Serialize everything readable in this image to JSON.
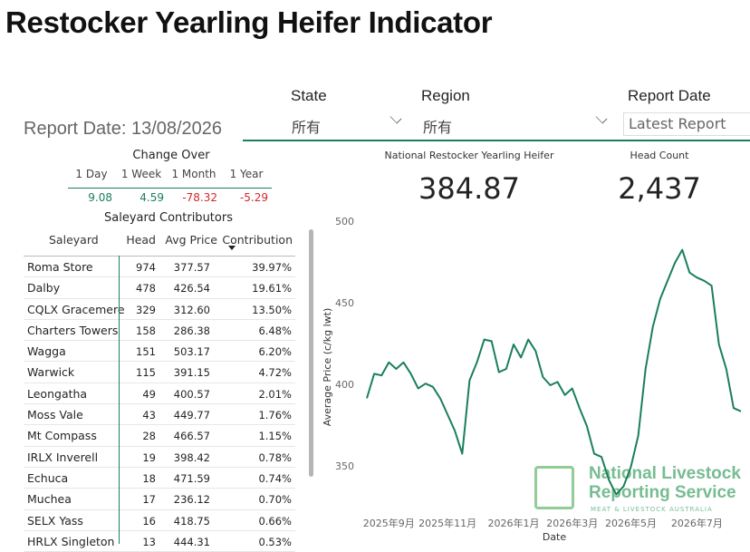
{
  "title": "Restocker Yearling Heifer Indicator",
  "report_date": "Report Date: 13/08/2026",
  "filters": [
    {
      "label": "State",
      "value": "所有"
    },
    {
      "label": "Region",
      "value": "所有"
    },
    {
      "label": "Report Date",
      "value": "Latest Report"
    }
  ],
  "change_over": {
    "title": "Change Over",
    "headers": [
      "1 Day",
      "1 Week",
      "1 Month",
      "1 Year"
    ],
    "values": [
      "9.08",
      "4.59",
      "-78.32",
      "-5.29"
    ]
  },
  "kpis": [
    {
      "label": "National Restocker Yearling Heifer",
      "value": "384.87"
    },
    {
      "label": "Head Count",
      "value": "2,437"
    }
  ],
  "table": {
    "title": "Saleyard Contributors",
    "columns": [
      "Saleyard",
      "Head",
      "Avg Price",
      "Contribution"
    ],
    "rows": [
      [
        "Roma Store",
        "974",
        "377.57",
        "39.97%"
      ],
      [
        "Dalby",
        "478",
        "426.54",
        "19.61%"
      ],
      [
        "CQLX Gracemere",
        "329",
        "312.60",
        "13.50%"
      ],
      [
        "Charters Towers",
        "158",
        "286.38",
        "6.48%"
      ],
      [
        "Wagga",
        "151",
        "503.17",
        "6.20%"
      ],
      [
        "Warwick",
        "115",
        "391.15",
        "4.72%"
      ],
      [
        "Leongatha",
        "49",
        "400.57",
        "2.01%"
      ],
      [
        "Moss Vale",
        "43",
        "449.77",
        "1.76%"
      ],
      [
        "Mt Compass",
        "28",
        "466.57",
        "1.15%"
      ],
      [
        "IRLX Inverell",
        "19",
        "398.42",
        "0.78%"
      ],
      [
        "Echuca",
        "18",
        "471.59",
        "0.74%"
      ],
      [
        "Muchea",
        "17",
        "236.12",
        "0.70%"
      ],
      [
        "SELX Yass",
        "16",
        "418.75",
        "0.66%"
      ],
      [
        "HRLX Singleton",
        "13",
        "444.31",
        "0.53%"
      ]
    ]
  },
  "logo": {
    "line1": "National Livestock",
    "line2": "Reporting Service",
    "line3": "MEAT & LIVESTOCK AUSTRALIA"
  },
  "chart_data": {
    "type": "line",
    "x_label": "Date",
    "y_label": "Average Price (c/kg lwt)",
    "color": "#1a7f5a",
    "categories": [
      null,
      null,
      null,
      "2025年9月",
      null,
      null,
      null,
      null,
      null,
      null,
      null,
      "2025年11月",
      null,
      null,
      null,
      null,
      null,
      null,
      null,
      null,
      "2026年1月",
      null,
      null,
      null,
      null,
      null,
      null,
      null,
      "2026年3月",
      null,
      null,
      null,
      null,
      null,
      null,
      null,
      "2026年5月",
      null,
      null,
      null,
      null,
      null,
      null,
      null,
      null,
      "2026年7月",
      null,
      null,
      null,
      null,
      null,
      null
    ],
    "values": [
      392,
      407,
      406,
      414,
      410,
      414,
      407,
      398,
      401,
      399,
      392,
      382,
      372,
      358,
      403,
      414,
      428,
      427,
      408,
      410,
      425,
      417,
      428,
      421,
      405,
      400,
      402,
      394,
      398,
      386,
      375,
      358,
      356,
      342,
      333,
      338,
      350,
      369,
      410,
      436,
      453,
      464,
      475,
      483,
      469,
      466,
      464,
      461,
      425,
      410,
      386,
      384
    ],
    "ylim": [
      320,
      500
    ],
    "yticks": [
      350,
      400,
      450,
      500
    ],
    "grid": false
  }
}
